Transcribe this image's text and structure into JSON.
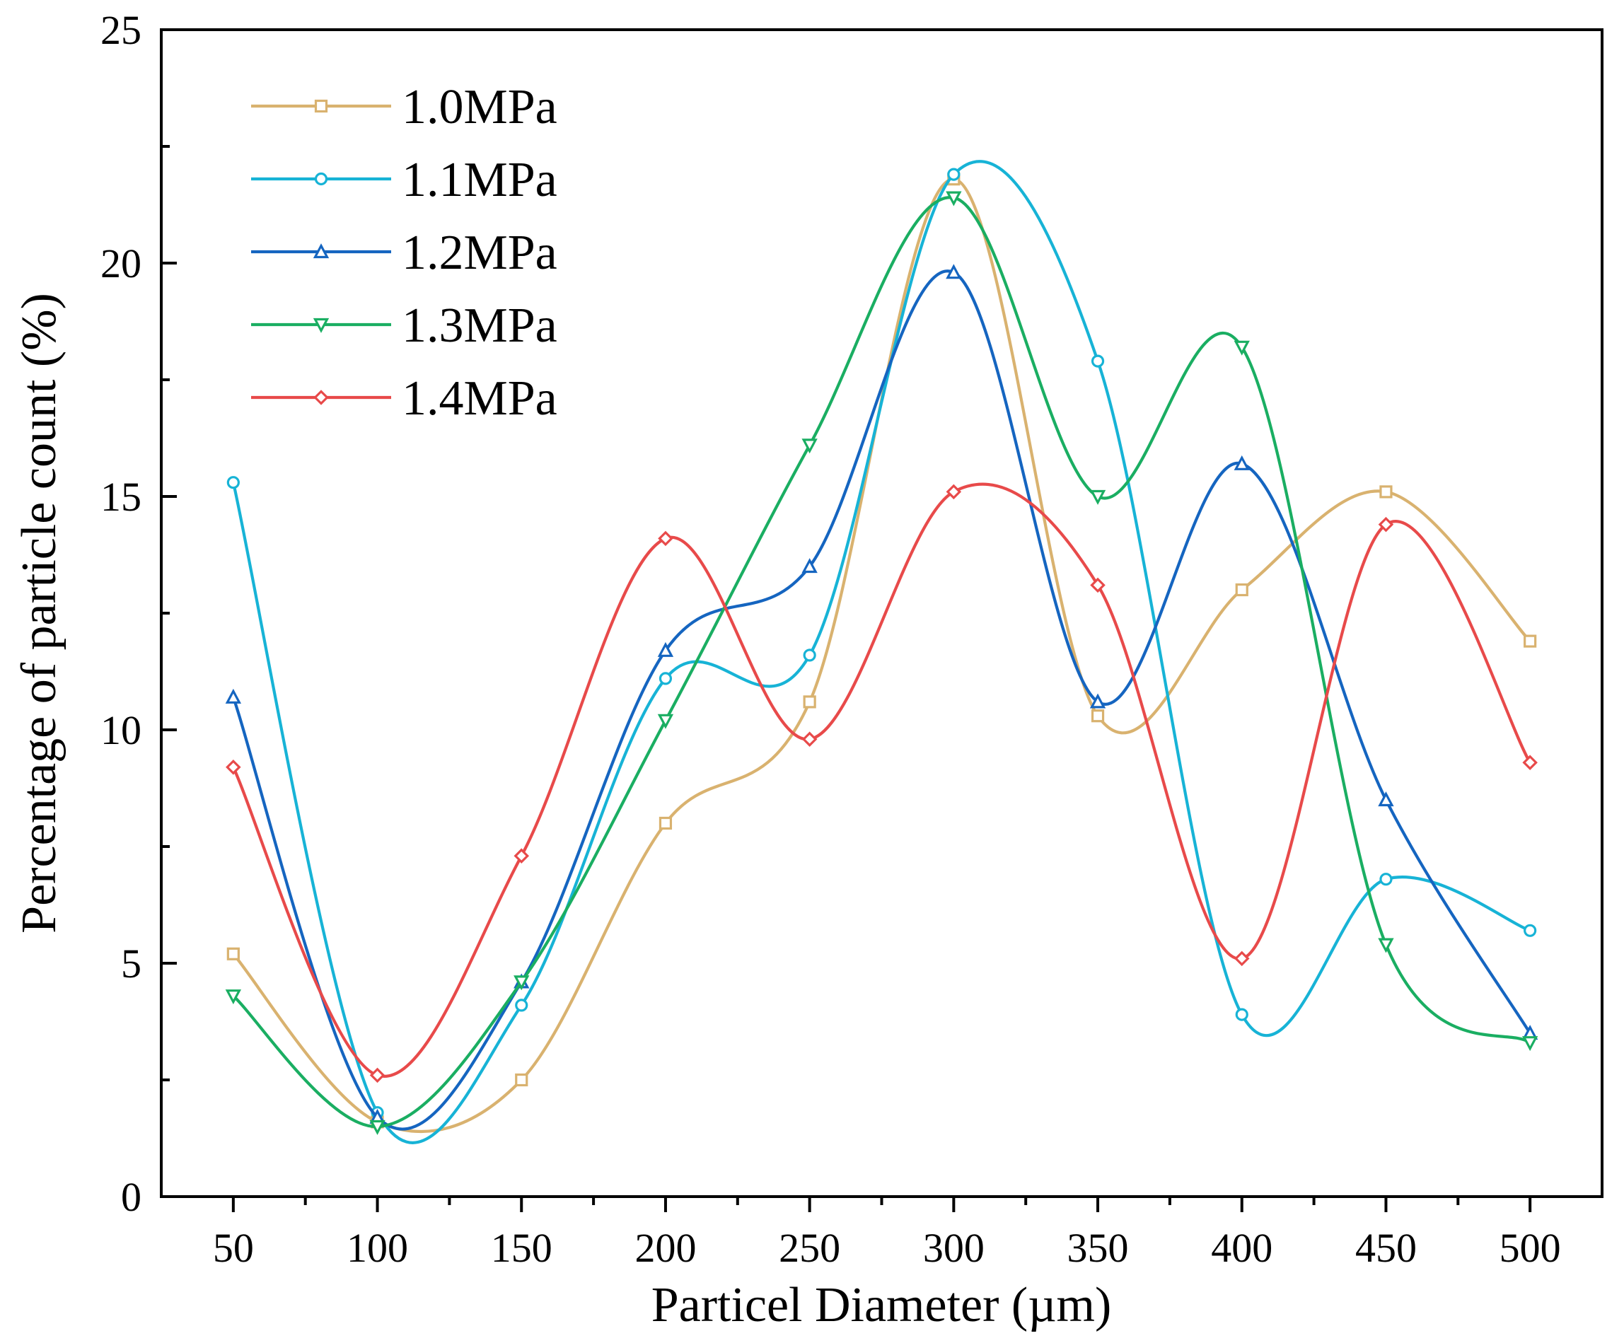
{
  "chart_data": {
    "type": "line",
    "title": "",
    "xlabel": "Particel Diameter (µm)",
    "ylabel": "Percentage of particle count (%)",
    "xlim": [
      25,
      525
    ],
    "ylim": [
      0,
      25
    ],
    "xticks": [
      50,
      100,
      150,
      200,
      250,
      300,
      350,
      400,
      450,
      500
    ],
    "yticks": [
      0,
      5,
      10,
      15,
      20,
      25
    ],
    "xtick_labels": [
      "50",
      "100",
      "150",
      "200",
      "250",
      "300",
      "350",
      "400",
      "450",
      "500"
    ],
    "ytick_labels": [
      "0",
      "5",
      "10",
      "15",
      "20",
      "25"
    ],
    "legend_position": "top-left",
    "grid": false,
    "x": [
      50,
      100,
      150,
      200,
      250,
      300,
      350,
      400,
      450,
      500
    ],
    "series": [
      {
        "name": "1.0MPa",
        "color": "#D9B26F",
        "marker": "square",
        "values": [
          5.2,
          1.6,
          2.5,
          8.0,
          10.6,
          21.8,
          10.3,
          13.0,
          15.1,
          11.9
        ]
      },
      {
        "name": "1.1MPa",
        "color": "#17B3D6",
        "marker": "circle",
        "values": [
          15.3,
          1.8,
          4.1,
          11.1,
          11.6,
          21.9,
          17.9,
          3.9,
          6.8,
          5.7
        ]
      },
      {
        "name": "1.2MPa",
        "color": "#1565C0",
        "marker": "triangle-up",
        "values": [
          10.7,
          1.7,
          4.6,
          11.7,
          13.5,
          19.8,
          10.6,
          15.7,
          8.5,
          3.5
        ]
      },
      {
        "name": "1.3MPa",
        "color": "#1AAE62",
        "marker": "triangle-down",
        "values": [
          4.3,
          1.5,
          4.6,
          10.2,
          16.1,
          21.4,
          15.0,
          18.2,
          5.4,
          3.3
        ]
      },
      {
        "name": "1.4MPa",
        "color": "#E84A4A",
        "marker": "diamond",
        "values": [
          9.2,
          2.6,
          7.3,
          14.1,
          9.8,
          15.1,
          13.1,
          5.1,
          14.4,
          9.3
        ]
      }
    ]
  }
}
